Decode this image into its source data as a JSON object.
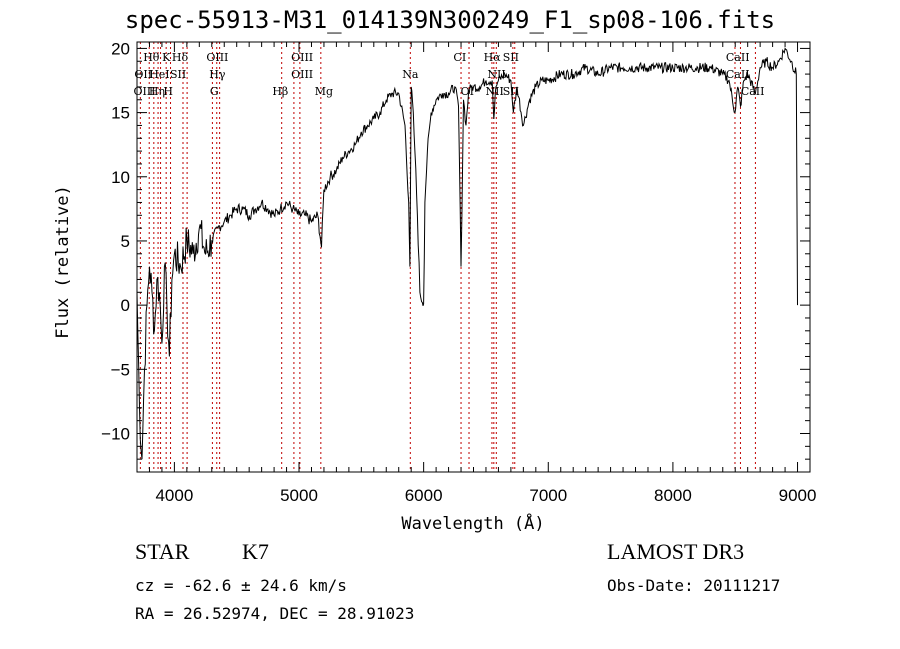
{
  "title": "spec-55913-M31_014139N300249_F1_sp08-106.fits",
  "info": {
    "class_label": "STAR",
    "subclass_label": "K7",
    "survey": "LAMOST DR3",
    "cz": "cz = -62.6 ± 24.6 km/s",
    "obs_date": "Obs-Date: 20111217",
    "radec": "RA =  26.52974, DEC =  28.91023"
  },
  "chart_data": {
    "type": "line",
    "title": "spec-55913-M31_014139N300249_F1_sp08-106.fits",
    "xlabel": "Wavelength (Å)",
    "ylabel": "Flux (relative)",
    "xlim": [
      3700,
      9100
    ],
    "ylim": [
      -13,
      20.5
    ],
    "xticks": [
      4000,
      5000,
      6000,
      7000,
      8000,
      9000
    ],
    "yticks": [
      -10,
      -5,
      0,
      5,
      10,
      15,
      20
    ],
    "grid": false,
    "series": [
      {
        "color": "#000000",
        "x": [
          3700,
          3720,
          3740,
          3760,
          3780,
          3800,
          3820,
          3840,
          3860,
          3880,
          3900,
          3920,
          3940,
          3960,
          3980,
          4000,
          4050,
          4100,
          4150,
          4200,
          4250,
          4300,
          4350,
          4400,
          4450,
          4500,
          4550,
          4600,
          4650,
          4700,
          4750,
          4800,
          4850,
          4900,
          4950,
          5000,
          5050,
          5100,
          5150,
          5180,
          5200,
          5250,
          5300,
          5350,
          5400,
          5450,
          5500,
          5550,
          5600,
          5650,
          5700,
          5750,
          5800,
          5850,
          5880,
          5890,
          5900,
          5910,
          5930,
          5950,
          5970,
          5990,
          6000,
          6010,
          6030,
          6060,
          6100,
          6150,
          6200,
          6250,
          6280,
          6300,
          6320,
          6340,
          6360,
          6380,
          6400,
          6450,
          6500,
          6550,
          6563,
          6580,
          6600,
          6650,
          6700,
          6720,
          6750,
          6800,
          6850,
          6900,
          6950,
          7000,
          7100,
          7200,
          7300,
          7400,
          7500,
          7600,
          7700,
          7800,
          7900,
          8000,
          8100,
          8200,
          8300,
          8400,
          8450,
          8498,
          8520,
          8542,
          8570,
          8600,
          8662,
          8700,
          8750,
          8800,
          8850,
          8900,
          8950,
          8990,
          9000
        ],
        "y": [
          1,
          -8,
          -12,
          -5,
          0,
          3,
          1,
          -2,
          2,
          1,
          -3,
          3,
          0,
          -4,
          2,
          4,
          3,
          5,
          4,
          6,
          4,
          5,
          6,
          6.5,
          7,
          7.5,
          7.5,
          7,
          7.5,
          8,
          7.5,
          7,
          7.5,
          8,
          7.5,
          7,
          7,
          6.5,
          7,
          4.5,
          9,
          10,
          10.5,
          11.5,
          12,
          12.5,
          13.5,
          14,
          14.5,
          15,
          16,
          16.5,
          16.5,
          14,
          8,
          3,
          17,
          16,
          12,
          7,
          1,
          0.2,
          0.1,
          8,
          12,
          15,
          16,
          16.5,
          16.5,
          17,
          15.5,
          3,
          16,
          14,
          16.5,
          17,
          17,
          17,
          17.5,
          17.5,
          14.5,
          17,
          17.5,
          18,
          17.5,
          15,
          17,
          14,
          16,
          17,
          17.5,
          17.5,
          18,
          18,
          18.5,
          18,
          18.5,
          18.5,
          18.5,
          18.5,
          18.5,
          18.5,
          18.5,
          18.5,
          18.5,
          18,
          17.5,
          15,
          17,
          15.5,
          17.5,
          18,
          16.5,
          18.5,
          19,
          18.5,
          19,
          20,
          19,
          18,
          0
        ]
      }
    ],
    "lines": [
      {
        "label": "Hθ",
        "wave": 3798,
        "row": 0,
        "text_x": 3815
      },
      {
        "label": "K",
        "wave": 3934,
        "row": 0,
        "text_x": 3935
      },
      {
        "label": "Hδ",
        "wave": 4102,
        "row": 0,
        "text_x": 4045
      },
      {
        "label": "OIII",
        "wave": 4363,
        "row": 0,
        "text_x": 4345
      },
      {
        "label": "OIII",
        "wave": 4959,
        "row": 0,
        "text_x": 5025
      },
      {
        "label": "CI",
        "wave": 6300,
        "row": 0,
        "text_x": 6290
      },
      {
        "label": "Hα",
        "wave": 6563,
        "row": 0,
        "text_x": 6550
      },
      {
        "label": "SII",
        "wave": 6716,
        "row": 0,
        "text_x": 6700
      },
      {
        "label": "CaII",
        "wave": 8542,
        "row": 0,
        "text_x": 8520
      },
      {
        "label": "OII",
        "wave": 3727,
        "row": 1,
        "text_x": 3750
      },
      {
        "label": "HeI",
        "wave": 3889,
        "row": 1,
        "text_x": 3880
      },
      {
        "label": "SII",
        "wave": 4069,
        "row": 1,
        "text_x": 4030
      },
      {
        "label": "Hγ",
        "wave": 4340,
        "row": 1,
        "text_x": 4345
      },
      {
        "label": "OIII",
        "wave": 5007,
        "row": 1,
        "text_x": 5025
      },
      {
        "label": "Na",
        "wave": 5893,
        "row": 1,
        "text_x": 5893
      },
      {
        "label": "NII",
        "wave": 6583,
        "row": 1,
        "text_x": 6585
      },
      {
        "label": "CaII",
        "wave": 8498,
        "row": 1,
        "text_x": 8520
      },
      {
        "label": "OIII",
        "wave": 3869,
        "row": 2,
        "text_x": 3760
      },
      {
        "label": "Hη",
        "wave": 3835,
        "row": 2,
        "text_x": 3860
      },
      {
        "label": "H",
        "wave": 3969,
        "row": 2,
        "text_x": 3950
      },
      {
        "label": "G",
        "wave": 4305,
        "row": 2,
        "text_x": 4320
      },
      {
        "label": "Hβ",
        "wave": 4861,
        "row": 2,
        "text_x": 4850
      },
      {
        "label": "Mg",
        "wave": 5175,
        "row": 2,
        "text_x": 5200
      },
      {
        "label": "OI",
        "wave": 6364,
        "row": 2,
        "text_x": 6350
      },
      {
        "label": "NII",
        "wave": 6548,
        "row": 2,
        "text_x": 6570
      },
      {
        "label": "SII",
        "wave": 6731,
        "row": 2,
        "text_x": 6700
      },
      {
        "label": "CaII",
        "wave": 8662,
        "row": 2,
        "text_x": 8640
      }
    ]
  }
}
